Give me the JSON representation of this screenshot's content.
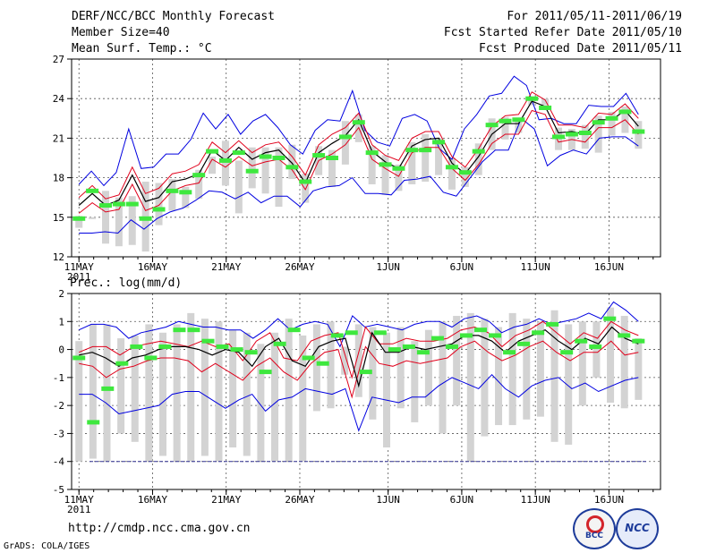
{
  "header": {
    "title": "DERF/NCC/BCC Monthly Forecast",
    "member": "Member Size=40",
    "variable": "Mean Surf. Temp.: °C",
    "period": "For 2011/05/11-2011/06/19",
    "refer": "Fcst Started Refer Date 2011/05/10",
    "produced": "Fcst Produced Date 2011/05/11"
  },
  "footer": {
    "url": "http://cmdp.ncc.cma.gov.cn",
    "grads": "GrADS: COLA/IGES",
    "logo_bcc": "BCC",
    "logo_ncc": "NCC"
  },
  "colors": {
    "box": "#d3d3d3",
    "mean": "#000000",
    "spread": "#e0001b",
    "envelope": "#0000e0",
    "median": "#3ee83e",
    "grid": "#555555"
  },
  "chart_data": [
    {
      "type": "line",
      "name": "temperature",
      "title": "Mean Surf. Temp.: °C",
      "ylim": [
        12,
        27
      ],
      "yticks": [
        12,
        15,
        18,
        21,
        24,
        27
      ],
      "xtick_labels": [
        "11MAY",
        "16MAY",
        "21MAY",
        "26MAY",
        "1JUN",
        "6JUN",
        "11JUN",
        "16JUN"
      ],
      "xtick_days": [
        1,
        6,
        11,
        16,
        22,
        27,
        32,
        37
      ],
      "year_label": "2011",
      "days": 40,
      "series": [
        {
          "name": "max",
          "values": [
            17.5,
            18.5,
            17.4,
            18.4,
            21.7,
            18.7,
            18.8,
            19.8,
            19.8,
            20.9,
            22.9,
            21.7,
            22.8,
            21.3,
            22.3,
            22.8,
            21.8,
            20.5,
            19.8,
            21.6,
            22.4,
            22.3,
            24.6,
            21.6,
            20.7,
            20.4,
            22.5,
            22.8,
            22.3,
            20.2,
            19.4,
            21.7,
            22.8,
            24.2,
            24.4,
            25.7,
            25.0,
            22.4,
            22.5,
            22.1,
            22.1,
            23.5,
            23.4,
            23.4,
            24.4,
            22.8
          ]
        },
        {
          "name": "upper",
          "values": [
            16.5,
            17.4,
            16.4,
            16.7,
            18.8,
            16.8,
            17.2,
            18.3,
            18.5,
            19.0,
            20.7,
            19.9,
            20.8,
            19.9,
            20.5,
            20.7,
            19.6,
            18.2,
            20.5,
            21.3,
            21.8,
            22.9,
            20.5,
            19.7,
            19.3,
            21.0,
            21.5,
            21.5,
            19.6,
            18.8,
            20.2,
            21.9,
            22.7,
            22.8,
            24.5,
            23.9,
            22.0,
            22.0,
            21.8,
            22.9,
            22.8,
            23.6,
            22.5
          ]
        },
        {
          "name": "mean",
          "values": [
            15.9,
            16.8,
            15.9,
            16.3,
            18.2,
            16.2,
            16.5,
            17.7,
            17.9,
            18.3,
            20.1,
            19.3,
            20.3,
            19.4,
            19.9,
            20.1,
            19.1,
            17.6,
            19.9,
            20.6,
            21.2,
            22.4,
            20.0,
            19.2,
            18.7,
            20.4,
            20.9,
            21.0,
            19.1,
            18.3,
            19.6,
            21.3,
            22.1,
            22.1,
            23.8,
            23.4,
            21.4,
            21.5,
            21.3,
            22.4,
            22.4,
            23.1,
            21.9
          ]
        },
        {
          "name": "lower",
          "values": [
            15.3,
            16.1,
            15.4,
            15.6,
            17.5,
            15.5,
            15.9,
            17.0,
            17.4,
            17.6,
            19.4,
            18.8,
            19.6,
            18.9,
            19.2,
            19.4,
            18.6,
            17.1,
            19.3,
            19.8,
            20.5,
            21.8,
            19.4,
            18.7,
            18.1,
            19.9,
            20.3,
            20.3,
            18.7,
            17.8,
            19.0,
            20.6,
            21.3,
            21.3,
            23.1,
            22.8,
            20.7,
            20.9,
            20.7,
            21.8,
            21.8,
            22.4,
            21.3
          ]
        },
        {
          "name": "min",
          "values": [
            13.8,
            13.8,
            13.9,
            13.8,
            14.8,
            14.1,
            14.9,
            15.4,
            15.7,
            16.3,
            17.0,
            16.9,
            16.4,
            16.9,
            16.1,
            16.6,
            16.6,
            15.8,
            17.0,
            17.3,
            17.4,
            18.0,
            16.8,
            16.8,
            16.7,
            17.8,
            17.9,
            18.1,
            16.9,
            16.6,
            17.9,
            19.2,
            20.1,
            20.1,
            22.5,
            21.7,
            18.9,
            19.7,
            20.1,
            19.8,
            21.0,
            21.1,
            21.1,
            20.4
          ]
        },
        {
          "name": "median",
          "values": [
            14.9,
            17.0,
            15.9,
            16.0,
            16.0,
            14.9,
            15.6,
            17.0,
            16.9,
            18.2,
            20.0,
            19.3,
            19.9,
            18.5,
            19.6,
            19.5,
            18.8,
            17.7,
            19.7,
            19.5,
            21.1,
            22.2,
            19.9,
            19.0,
            18.7,
            20.1,
            20.1,
            20.7,
            18.8,
            18.4,
            20.0,
            22.0,
            22.3,
            22.4,
            24.0,
            23.3,
            21.1,
            21.3,
            21.4,
            22.2,
            22.5,
            23.0,
            21.5
          ]
        },
        {
          "name": "box_top",
          "values": [
            15.1,
            15.0,
            17.0,
            16.5,
            16.6,
            17.7,
            17.6,
            17.9,
            17.3,
            18.6,
            19.6,
            20.8,
            19.3,
            20.3,
            20.3,
            20.3,
            20.5,
            18.3,
            20.4,
            20.1,
            22.3,
            22.8,
            20.4,
            19.7,
            19.0,
            20.7,
            21.3,
            21.0,
            19.5,
            18.8,
            20.6,
            22.5,
            22.6,
            22.5,
            24.0,
            24.0,
            21.8,
            21.7,
            22.0,
            22.7,
            23.0,
            23.4,
            22.3
          ]
        },
        {
          "name": "box_bottom",
          "values": [
            14.2,
            15.0,
            13.0,
            12.8,
            12.9,
            12.4,
            14.4,
            15.5,
            15.7,
            16.4,
            18.3,
            17.4,
            15.3,
            17.2,
            16.8,
            15.8,
            17.9,
            16.1,
            18.2,
            17.3,
            19.0,
            20.7,
            17.5,
            16.7,
            17.0,
            17.5,
            17.7,
            18.2,
            17.1,
            17.3,
            18.2,
            20.1,
            20.9,
            21.4,
            23.5,
            23.5,
            20.1,
            20.1,
            20.2,
            19.9,
            21.2,
            21.4,
            20.2
          ]
        }
      ]
    },
    {
      "type": "line",
      "name": "precipitation",
      "title": "Prec.: log(mm/d)",
      "ylim": [
        -5,
        2
      ],
      "yticks": [
        -5,
        -4,
        -3,
        -2,
        -1,
        0,
        1,
        2
      ],
      "xtick_labels": [
        "11MAY",
        "16MAY",
        "21MAY",
        "26MAY",
        "1JUN",
        "6JUN",
        "11JUN",
        "16JUN"
      ],
      "xtick_days": [
        1,
        6,
        11,
        16,
        22,
        27,
        32,
        37
      ],
      "year_label": "2011",
      "days": 40,
      "floor": -4,
      "series": [
        {
          "name": "max",
          "values": [
            0.7,
            0.9,
            0.9,
            0.8,
            0.4,
            0.6,
            0.7,
            0.8,
            1.0,
            0.9,
            0.8,
            0.8,
            0.7,
            0.7,
            0.4,
            0.7,
            1.1,
            0.7,
            0.9,
            1.0,
            0.9,
            0.1,
            1.2,
            0.8,
            0.9,
            0.8,
            0.7,
            0.9,
            1.0,
            1.0,
            0.8,
            1.1,
            1.2,
            1.0,
            0.6,
            0.8,
            0.9,
            1.1,
            0.9,
            1.0,
            1.1,
            1.3,
            1.1,
            1.7,
            1.4,
            1.0
          ]
        },
        {
          "name": "upper",
          "values": [
            -0.1,
            0.1,
            0.1,
            -0.2,
            0.1,
            0.2,
            0.3,
            0.2,
            0.1,
            0.3,
            0.1,
            0.2,
            -0.4,
            0.3,
            0.6,
            -0.3,
            -0.4,
            0.3,
            0.5,
            0.6,
            -1.0,
            0.8,
            0.2,
            0.2,
            0.4,
            0.3,
            0.3,
            0.4,
            0.7,
            0.8,
            0.6,
            0.1,
            0.5,
            0.7,
            1.0,
            0.6,
            0.2,
            0.6,
            0.4,
            1.0,
            0.7,
            0.5
          ]
        },
        {
          "name": "mean",
          "values": [
            -0.2,
            -0.1,
            -0.3,
            -0.6,
            -0.3,
            -0.2,
            0.0,
            0.1,
            0.1,
            0.0,
            -0.2,
            0.0,
            -0.1,
            -0.6,
            0.1,
            0.4,
            -0.4,
            -0.6,
            0.1,
            0.3,
            0.4,
            -1.3,
            0.6,
            -0.1,
            -0.1,
            0.1,
            0.0,
            0.1,
            0.2,
            0.5,
            0.5,
            0.3,
            -0.1,
            0.3,
            0.5,
            0.7,
            0.3,
            0.0,
            0.4,
            0.2,
            0.8,
            0.4,
            0.2
          ]
        },
        {
          "name": "lower",
          "values": [
            -0.5,
            -0.6,
            -1.0,
            -0.7,
            -0.6,
            -0.4,
            -0.3,
            -0.3,
            -0.4,
            -0.8,
            -0.5,
            -0.8,
            -1.1,
            -0.6,
            -0.3,
            -0.8,
            -1.1,
            -0.5,
            -0.1,
            0.0,
            -1.7,
            0.1,
            -0.5,
            -0.6,
            -0.4,
            -0.5,
            -0.4,
            -0.3,
            0.1,
            0.3,
            -0.1,
            -0.4,
            -0.2,
            0.1,
            0.3,
            -0.1,
            -0.4,
            -0.1,
            -0.1,
            0.3,
            -0.2,
            -0.1
          ]
        },
        {
          "name": "min",
          "values": [
            -1.6,
            -1.6,
            -1.9,
            -2.3,
            -2.2,
            -2.1,
            -2.0,
            -1.6,
            -1.5,
            -1.5,
            -1.8,
            -2.1,
            -1.8,
            -1.6,
            -2.2,
            -1.8,
            -1.7,
            -1.4,
            -1.5,
            -1.6,
            -1.4,
            -2.9,
            -1.7,
            -1.8,
            -1.9,
            -1.7,
            -1.7,
            -1.3,
            -1.0,
            -1.2,
            -1.4,
            -0.9,
            -1.4,
            -1.7,
            -1.3,
            -1.1,
            -1.0,
            -1.4,
            -1.2,
            -1.5,
            -1.3,
            -1.1,
            -1.0
          ]
        },
        {
          "name": "median",
          "values": [
            -0.3,
            -2.6,
            -1.4,
            -0.5,
            0.1,
            -0.3,
            0.1,
            0.7,
            0.7,
            0.3,
            0.1,
            0.0,
            -0.1,
            -0.8,
            0.2,
            0.7,
            -0.3,
            -0.5,
            0.5,
            0.6,
            -0.8,
            0.6,
            0.0,
            0.1,
            -0.1,
            0.4,
            0.1,
            0.5,
            0.7,
            0.5,
            -0.1,
            0.2,
            0.6,
            0.9,
            -0.1,
            0.3,
            0.1,
            1.1,
            0.5,
            0.3
          ]
        },
        {
          "name": "box_top",
          "values": [
            0.3,
            0.9,
            0.9,
            0.4,
            0.5,
            0.9,
            0.6,
            0.9,
            1.3,
            1.1,
            1.0,
            0.7,
            0.6,
            0.2,
            0.6,
            1.1,
            0.5,
            0.9,
            1.0,
            0.1,
            0.9,
            0.8,
            0.6,
            0.8,
            0.3,
            0.7,
            1.0,
            1.2,
            1.3,
            1.1,
            0.8,
            1.3,
            1.1,
            1.0,
            1.4,
            0.9,
            1.0,
            1.0,
            1.5,
            1.2,
            0.4
          ]
        },
        {
          "name": "box_bottom",
          "values": [
            -4.0,
            -3.9,
            -4.0,
            -3.0,
            -3.3,
            -4.0,
            -3.8,
            -4.0,
            -4.0,
            -3.8,
            -4.0,
            -3.5,
            -3.8,
            -4.0,
            -4.0,
            -4.0,
            -4.0,
            -2.2,
            -2.1,
            -0.9,
            -1.7,
            -2.5,
            -3.5,
            -2.1,
            -2.6,
            -2.0,
            -3.0,
            -2.0,
            -4.0,
            -3.1,
            -2.7,
            -2.7,
            -2.5,
            -2.4,
            -3.3,
            -3.4,
            -2.0,
            -1.0,
            -1.9,
            -2.1,
            -1.8
          ]
        }
      ]
    }
  ]
}
